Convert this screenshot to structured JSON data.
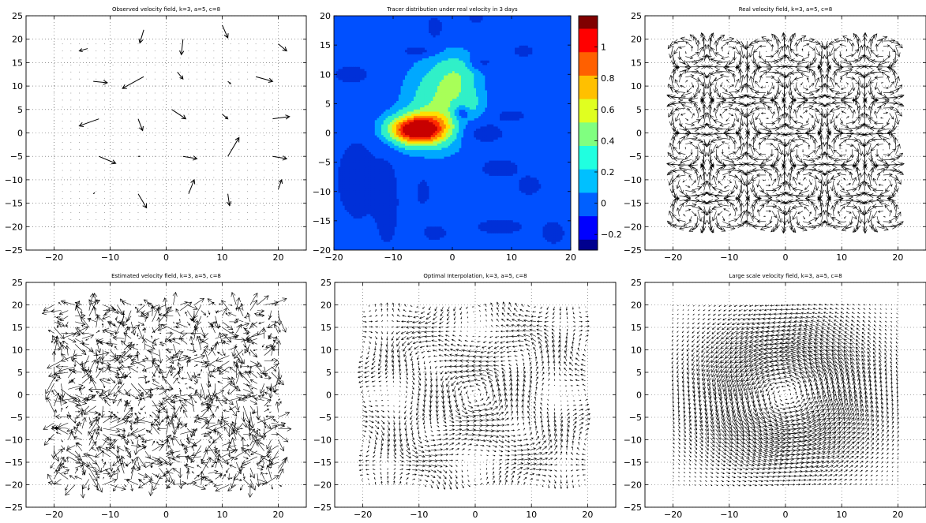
{
  "figure": {
    "colors": {
      "arrow": "#000000",
      "grid": "#555555",
      "axes": "#000000",
      "background": "#ffffff"
    }
  },
  "chart_data": [
    {
      "type": "quiver",
      "title": "Observed velocity field,  k=3, a=5, c=8",
      "xlim": [
        -25,
        25
      ],
      "ylim": [
        -25,
        25
      ],
      "xticks": [
        -20,
        -10,
        0,
        10,
        20
      ],
      "yticks": [
        -25,
        -20,
        -15,
        -10,
        -5,
        0,
        5,
        10,
        15,
        20,
        25
      ],
      "grid": true,
      "arrows": [
        {
          "x": -14,
          "y": 18,
          "u": -1.5,
          "v": -0.5
        },
        {
          "x": -4,
          "y": 22,
          "u": -0.7,
          "v": -2.8
        },
        {
          "x": 3,
          "y": 20,
          "u": -0.3,
          "v": -3.3
        },
        {
          "x": 10,
          "y": 23,
          "u": 1.0,
          "v": -2.7
        },
        {
          "x": 20,
          "y": 19,
          "u": 1.5,
          "v": -1.5
        },
        {
          "x": -13,
          "y": 11,
          "u": 2.5,
          "v": -0.3
        },
        {
          "x": -4,
          "y": 12,
          "u": -3.8,
          "v": -2.5
        },
        {
          "x": 2,
          "y": 13,
          "u": 1.0,
          "v": -1.5
        },
        {
          "x": 11,
          "y": 11,
          "u": 0.5,
          "v": -0.5
        },
        {
          "x": 16,
          "y": 12,
          "u": 3.0,
          "v": -1.0
        },
        {
          "x": -12,
          "y": 3,
          "u": -3.5,
          "v": -1.5
        },
        {
          "x": -5,
          "y": 3,
          "u": 0.8,
          "v": -2.5
        },
        {
          "x": 1,
          "y": 5,
          "u": 2.5,
          "v": -2.0
        },
        {
          "x": 10,
          "y": 4,
          "u": 1.0,
          "v": -1.0
        },
        {
          "x": 19,
          "y": 3,
          "u": 3.0,
          "v": 0.5
        },
        {
          "x": -12,
          "y": -5,
          "u": 3.0,
          "v": -1.5
        },
        {
          "x": -5,
          "y": -5,
          "u": 0.3,
          "v": 0
        },
        {
          "x": 3,
          "y": -5,
          "u": 2.5,
          "v": -0.5
        },
        {
          "x": 11,
          "y": -5,
          "u": 2.0,
          "v": 4.0
        },
        {
          "x": 19,
          "y": -5,
          "u": 2.5,
          "v": -0.5
        },
        {
          "x": -13,
          "y": -13,
          "u": 0.2,
          "v": 0.2
        },
        {
          "x": -5,
          "y": -13,
          "u": 1.5,
          "v": -3.0
        },
        {
          "x": 4,
          "y": -13,
          "u": 1.0,
          "v": 3.0
        },
        {
          "x": 11,
          "y": -13,
          "u": 0.3,
          "v": -2.5
        },
        {
          "x": 20,
          "y": -12,
          "u": 0.6,
          "v": 2.0
        }
      ]
    },
    {
      "type": "contour",
      "title": "Tracer distribution under real velocity in 3 days",
      "xlim": [
        -20,
        20
      ],
      "ylim": [
        -20,
        20
      ],
      "xticks": [
        -20,
        -10,
        0,
        10,
        20
      ],
      "yticks": [
        -20,
        -15,
        -10,
        -5,
        0,
        5,
        10,
        15,
        20
      ],
      "colorbar": {
        "ticks": [
          -0.2,
          0,
          0.2,
          0.4,
          0.6,
          0.8,
          1
        ],
        "range": [
          -0.3,
          1.2
        ]
      },
      "levels": [
        -0.15,
        0.1,
        0.25,
        0.45,
        0.6,
        0.75,
        0.9,
        1.05
      ],
      "level_colors": [
        "#0030d8",
        "#00a8ff",
        "#30f0c8",
        "#a8ff58",
        "#ffe000",
        "#ff8a00",
        "#ff2a00",
        "#c80000"
      ],
      "background_color": "#0050ff",
      "sources": [
        {
          "x": -6,
          "y": 0.5,
          "sx": 3.5,
          "sy": 1.8,
          "a": 1.2
        },
        {
          "x": -2,
          "y": 5,
          "sx": 4.0,
          "sy": 5.0,
          "a": 0.45
        },
        {
          "x": 1,
          "y": 10,
          "sx": 2.5,
          "sy": 2.5,
          "a": 0.25
        },
        {
          "x": 3,
          "y": 5,
          "sx": 1.5,
          "sy": 1.5,
          "a": 0.15
        },
        {
          "x": 1.5,
          "y": 3.5,
          "sx": 1.0,
          "sy": 1.0,
          "a": -0.35
        },
        {
          "x": -16,
          "y": -8,
          "sx": 2.5,
          "sy": 5.0,
          "a": -0.35
        },
        {
          "x": -11,
          "y": -12,
          "sx": 1.3,
          "sy": 5.0,
          "a": -0.35
        },
        {
          "x": -17,
          "y": 10,
          "sx": 2.0,
          "sy": 1.0,
          "a": -0.35
        },
        {
          "x": 5,
          "y": 0,
          "sx": 3.0,
          "sy": 1.5,
          "a": -0.3
        },
        {
          "x": 8,
          "y": -6,
          "sx": 2.5,
          "sy": 1.2,
          "a": -0.3
        },
        {
          "x": 13,
          "y": -9,
          "sx": 1.5,
          "sy": 1.2,
          "a": -0.3
        },
        {
          "x": 8,
          "y": -16,
          "sx": 3.0,
          "sy": 1.0,
          "a": -0.3
        },
        {
          "x": 17,
          "y": -17,
          "sx": 1.5,
          "sy": 1.5,
          "a": -0.3
        },
        {
          "x": -3,
          "y": -17,
          "sx": 1.5,
          "sy": 1.0,
          "a": -0.3
        },
        {
          "x": -3,
          "y": 18,
          "sx": 1.0,
          "sy": 1.5,
          "a": -0.3
        },
        {
          "x": 4,
          "y": 20,
          "sx": 1.0,
          "sy": 1.0,
          "a": -0.3
        },
        {
          "x": -5,
          "y": -10,
          "sx": 1.0,
          "sy": 2.0,
          "a": -0.25
        },
        {
          "x": -6,
          "y": 14,
          "sx": 2.0,
          "sy": 0.6,
          "a": -0.3
        },
        {
          "x": 5,
          "y": 12,
          "sx": 1.5,
          "sy": 0.8,
          "a": -0.25
        },
        {
          "x": 12,
          "y": 14,
          "sx": 1.5,
          "sy": 0.8,
          "a": -0.25
        },
        {
          "x": 10,
          "y": 3,
          "sx": 2.0,
          "sy": 0.8,
          "a": -0.25
        }
      ]
    },
    {
      "type": "quiver",
      "title": "Real velocity field,  k=3, a=5, c=8",
      "xlim": [
        -25,
        25
      ],
      "ylim": [
        -25,
        25
      ],
      "xticks": [
        -20,
        -10,
        0,
        10,
        20
      ],
      "yticks": [
        -25,
        -20,
        -15,
        -10,
        -5,
        0,
        5,
        10,
        15,
        20,
        25
      ],
      "grid": true,
      "field": "cellular",
      "domain": [
        -20,
        20
      ],
      "step": 1.1,
      "scale": 2.6
    },
    {
      "type": "quiver",
      "title": "Estimated velocity field,  k=3, a=5, c=8",
      "xlim": [
        -25,
        25
      ],
      "ylim": [
        -25,
        25
      ],
      "xticks": [
        -20,
        -10,
        0,
        10,
        20
      ],
      "yticks": [
        -25,
        -20,
        -15,
        -10,
        -5,
        0,
        5,
        10,
        15,
        20,
        25
      ],
      "grid": true,
      "field": "noisy",
      "domain": [
        -20,
        20
      ],
      "step": 1.25,
      "scale": 2.3
    },
    {
      "type": "quiver",
      "title": "Optimal Interpolation,  k=3, a=5, c=8",
      "xlim": [
        -25,
        25
      ],
      "ylim": [
        -25,
        25
      ],
      "xticks": [
        -20,
        -10,
        0,
        10,
        20
      ],
      "yticks": [
        -25,
        -20,
        -15,
        -10,
        -5,
        0,
        5,
        10,
        15,
        20,
        25
      ],
      "grid": true,
      "field": "interp",
      "domain": [
        -20,
        20
      ],
      "step": 1.1,
      "scale": 1.7
    },
    {
      "type": "quiver",
      "title": "Large scale velocity field,  k=3, a=5, c=8",
      "xlim": [
        -25,
        25
      ],
      "ylim": [
        -25,
        25
      ],
      "xticks": [
        -20,
        -10,
        0,
        10,
        20
      ],
      "yticks": [
        -25,
        -20,
        -15,
        -10,
        -5,
        0,
        5,
        10,
        15,
        20,
        25
      ],
      "grid": true,
      "field": "vortex",
      "domain": [
        -20,
        20
      ],
      "step": 0.95,
      "scale": 2.0
    }
  ]
}
